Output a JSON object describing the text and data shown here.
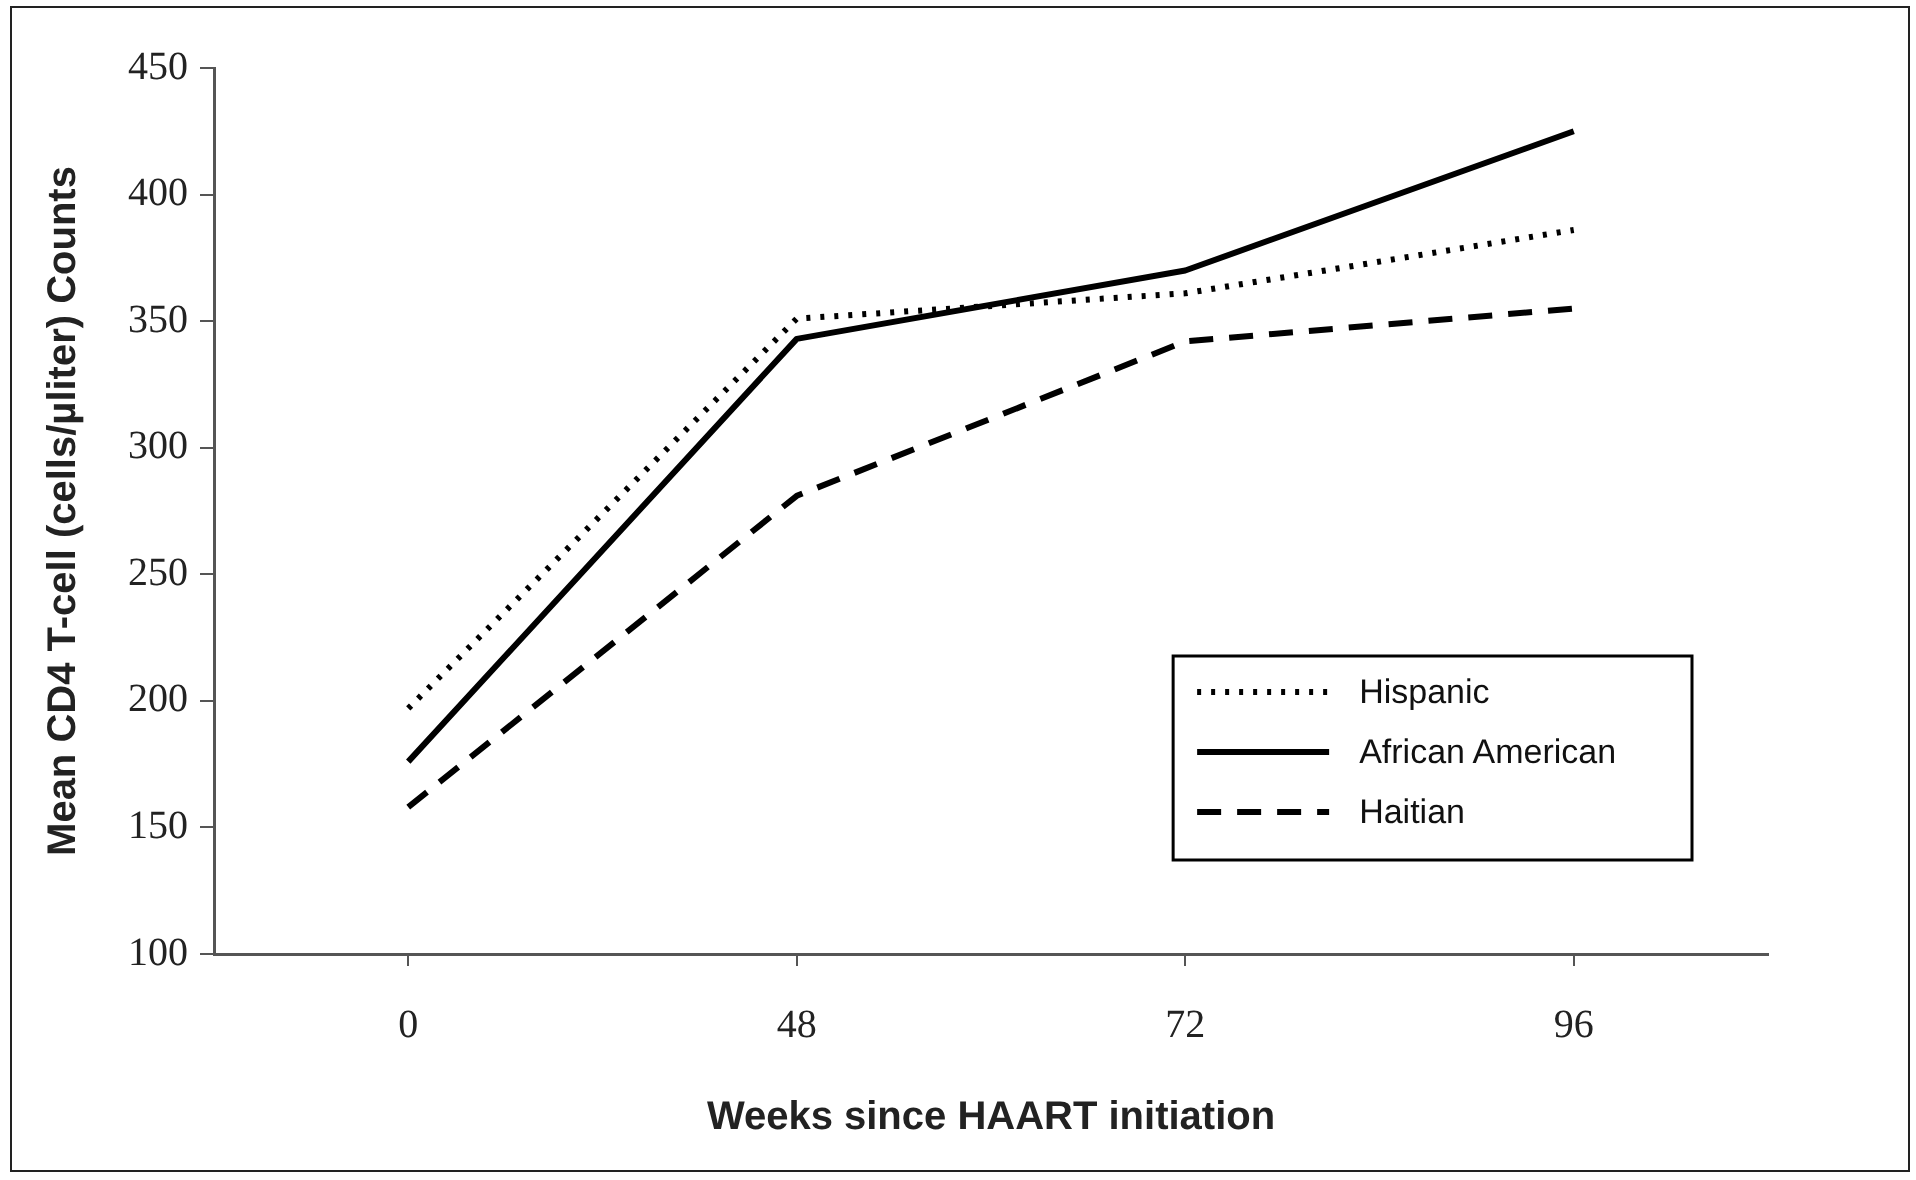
{
  "chart_data": {
    "type": "line",
    "xlabel": "Weeks since HAART initiation",
    "ylabel": "Mean CD4 T-cell (cells/µliter) Counts",
    "categories": [
      "0",
      "48",
      "72",
      "96"
    ],
    "series": [
      {
        "name": "Hispanic",
        "color": "#000000",
        "line_style": "dotted",
        "values": [
          197,
          351,
          361,
          386
        ]
      },
      {
        "name": "African American",
        "color": "#000000",
        "line_style": "solid",
        "values": [
          176,
          343,
          370,
          425
        ]
      },
      {
        "name": "Haitian",
        "color": "#000000",
        "line_style": "dashed",
        "values": [
          158,
          281,
          342,
          355
        ]
      }
    ],
    "ylim": [
      100,
      450
    ],
    "yticks": [
      100,
      150,
      200,
      250,
      300,
      350,
      400,
      450
    ],
    "grid": false,
    "legend": "bottom right",
    "marker": "none"
  }
}
